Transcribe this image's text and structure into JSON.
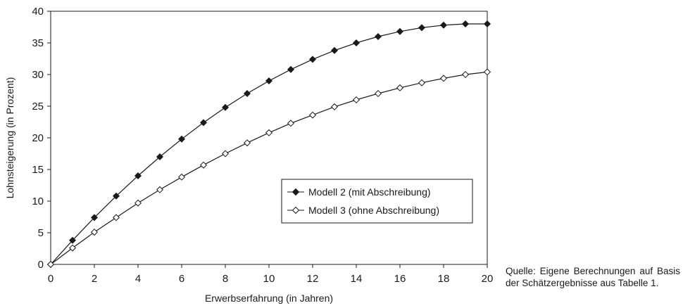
{
  "chart_data": {
    "type": "line",
    "title": "",
    "xlabel": "Erwerbserfahrung (in Jahren)",
    "ylabel": "Lohnsteigerung (in Prozent)",
    "xlim": [
      0,
      20
    ],
    "ylim": [
      0,
      40
    ],
    "x_ticks": [
      "0",
      "2",
      "4",
      "6",
      "8",
      "10",
      "12",
      "14",
      "16",
      "18",
      "20"
    ],
    "y_ticks": [
      "0",
      "5",
      "10",
      "15",
      "20",
      "25",
      "30",
      "35",
      "40"
    ],
    "grid": false,
    "legend_position": "center-right",
    "x": [
      0,
      1,
      2,
      3,
      4,
      5,
      6,
      7,
      8,
      9,
      10,
      11,
      12,
      13,
      14,
      15,
      16,
      17,
      18,
      19,
      20
    ],
    "series": [
      {
        "name": "Modell 2 (mit Abschreibung)",
        "marker": "filled-diamond",
        "color": "#1a1a1a",
        "values": [
          0,
          3.8,
          7.4,
          10.8,
          14.0,
          17.0,
          19.8,
          22.4,
          24.8,
          27.0,
          29.0,
          30.8,
          32.4,
          33.8,
          35.0,
          36.0,
          36.8,
          37.4,
          37.8,
          38.0,
          38.0
        ]
      },
      {
        "name": "Modell 3 (ohne Abschreibung)",
        "marker": "open-diamond",
        "color": "#1a1a1a",
        "values": [
          0,
          2.6,
          5.1,
          7.4,
          9.7,
          11.8,
          13.8,
          15.7,
          17.5,
          19.2,
          20.8,
          22.3,
          23.6,
          24.9,
          26.0,
          27.0,
          27.9,
          28.7,
          29.4,
          30.0,
          30.4
        ]
      }
    ]
  },
  "source_note": "Quelle: Eigene Berechnungen auf Basis der Schätzergebnisse aus Tabelle 1."
}
